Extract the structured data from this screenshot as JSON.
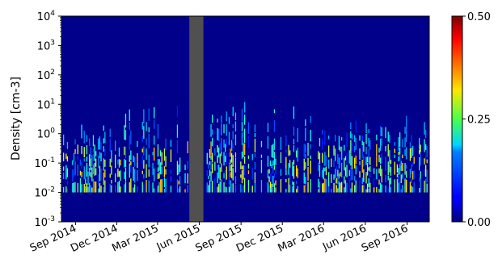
{
  "chart_data": {
    "type": "heatmap",
    "title": "",
    "xlabel": "",
    "ylabel": "Density [cm-3]",
    "y_scale": "log",
    "ylim": [
      0.001,
      10000
    ],
    "y_ticks": [
      {
        "value": 0.001,
        "label": "10",
        "exp": "-3"
      },
      {
        "value": 0.01,
        "label": "10",
        "exp": "-2"
      },
      {
        "value": 0.1,
        "label": "10",
        "exp": "-1"
      },
      {
        "value": 1,
        "label": "10",
        "exp": "0"
      },
      {
        "value": 10,
        "label": "10",
        "exp": "1"
      },
      {
        "value": 100,
        "label": "10",
        "exp": "2"
      },
      {
        "value": 1000,
        "label": "10",
        "exp": "3"
      },
      {
        "value": 10000,
        "label": "10",
        "exp": "4"
      }
    ],
    "xlim": [
      "2014-08-01",
      "2016-10-20"
    ],
    "x_ticks": [
      {
        "date": "2014-09-01",
        "label": "Sep 2014"
      },
      {
        "date": "2014-12-01",
        "label": "Dec 2014"
      },
      {
        "date": "2015-03-01",
        "label": "Mar 2015"
      },
      {
        "date": "2015-06-01",
        "label": "Jun 2015"
      },
      {
        "date": "2015-09-01",
        "label": "Sep 2015"
      },
      {
        "date": "2015-12-01",
        "label": "Dec 2015"
      },
      {
        "date": "2016-03-01",
        "label": "Mar 2016"
      },
      {
        "date": "2016-06-01",
        "label": "Jun 2016"
      },
      {
        "date": "2016-09-01",
        "label": "Sep 2016"
      }
    ],
    "data_gap": {
      "start": "2015-05-10",
      "end": "2015-06-10"
    },
    "colorbar": {
      "colormap": "jet",
      "range": [
        0.0,
        0.5
      ],
      "ticks": [
        {
          "value": 0.0,
          "label": "0.00"
        },
        {
          "value": 0.25,
          "label": "0.25"
        },
        {
          "value": 0.5,
          "label": "0.50"
        }
      ]
    },
    "colors": {
      "background": "#00008b",
      "gap": "#505050",
      "jet_low": "#00007f",
      "jet_high": "#7f0000"
    }
  }
}
